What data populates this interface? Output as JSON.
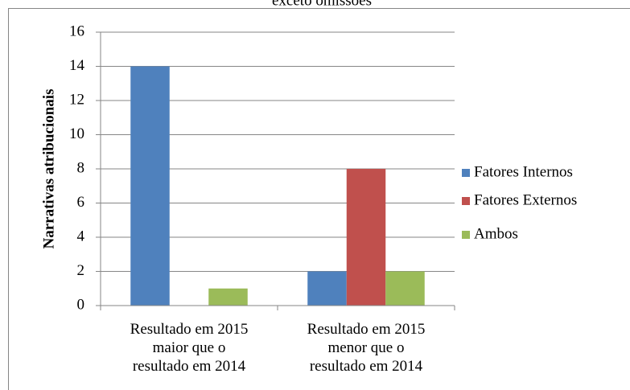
{
  "chart_data": {
    "type": "bar",
    "title": "exceto omissões",
    "y_label": "Narrativas atribucionais",
    "categories": [
      "Resultado em 2015\nmaior que o\nresultado em 2014",
      "Resultado em 2015\nmenor que o\nresultado em 2014"
    ],
    "series": [
      {
        "name": "Fatores Internos",
        "color": "#4f81bd",
        "values": [
          14,
          2
        ]
      },
      {
        "name": "Fatores Externos",
        "color": "#c0504d",
        "values": [
          0,
          8
        ]
      },
      {
        "name": "Ambos",
        "color": "#9bbb59",
        "values": [
          1,
          2
        ]
      }
    ],
    "ylim": [
      0,
      16
    ],
    "yticks": [
      0,
      2,
      4,
      6,
      8,
      10,
      12,
      14,
      16
    ],
    "grid": true,
    "legend": "right"
  }
}
